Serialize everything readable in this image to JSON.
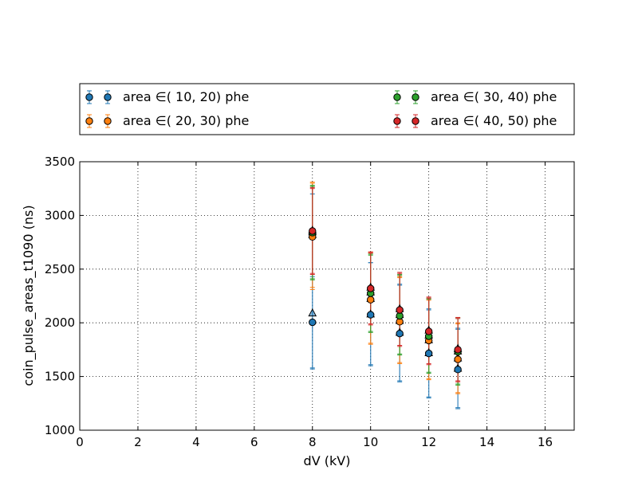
{
  "chart_data": {
    "type": "scatter",
    "title": "",
    "xlabel": "dV (kV)",
    "ylabel": "coin_pulse_areas_t1090 (ns)",
    "xlim": [
      0,
      17
    ],
    "ylim": [
      1000,
      3500
    ],
    "xticks": [
      0,
      2,
      4,
      6,
      8,
      10,
      12,
      14,
      16
    ],
    "yticks": [
      1000,
      1500,
      2000,
      2500,
      3000,
      3500
    ],
    "grid": true,
    "legend_position": "top, above plot, 2 columns",
    "series": [
      {
        "name": "area ∈( 10,  20) phe",
        "color": "#1f77b4",
        "x": [
          8,
          10,
          11,
          12,
          13
        ],
        "circles": [
          2005,
          2075,
          1900,
          1715,
          1565
        ],
        "triangles": [
          2090,
          2080,
          1910,
          1720,
          1575
        ],
        "circle_err": [
          [
            1580,
            2430
          ],
          [
            1600,
            2560
          ],
          [
            1460,
            2350
          ],
          [
            1310,
            2120
          ],
          [
            1210,
            1940
          ]
        ],
        "triangle_err": [
          [
            1570,
            3200
          ],
          [
            1610,
            2560
          ],
          [
            1450,
            2360
          ],
          [
            1300,
            2130
          ],
          [
            1200,
            1950
          ]
        ]
      },
      {
        "name": "area ∈( 20,  30) phe",
        "color": "#ff7f0e",
        "x": [
          8,
          10,
          11,
          12,
          13
        ],
        "circles": [
          2800,
          2215,
          2010,
          1835,
          1660
        ],
        "triangles": [
          2820,
          2225,
          2020,
          1840,
          1670
        ],
        "circle_err": [
          [
            2310,
            3310
          ],
          [
            1800,
            2650
          ],
          [
            1620,
            2420
          ],
          [
            1470,
            2210
          ],
          [
            1340,
            1990
          ]
        ],
        "triangle_err": [
          [
            2330,
            3300
          ],
          [
            1810,
            2660
          ],
          [
            1630,
            2430
          ],
          [
            1480,
            2220
          ],
          [
            1350,
            2000
          ]
        ]
      },
      {
        "name": "area ∈( 30,  40) phe",
        "color": "#2ca02c",
        "x": [
          8,
          10,
          11,
          12,
          13
        ],
        "circles": [
          2840,
          2275,
          2065,
          1875,
          1730
        ],
        "triangles": [
          2845,
          2285,
          2075,
          1885,
          1735
        ],
        "circle_err": [
          [
            2400,
            3280
          ],
          [
            1910,
            2630
          ],
          [
            1700,
            2440
          ],
          [
            1530,
            2220
          ],
          [
            1420,
            2050
          ]
        ],
        "triangle_err": [
          [
            2410,
            3270
          ],
          [
            1920,
            2640
          ],
          [
            1710,
            2450
          ],
          [
            1540,
            2230
          ],
          [
            1430,
            2040
          ]
        ]
      },
      {
        "name": "area ∈( 40,  50) phe",
        "color": "#d62728",
        "x": [
          8,
          10,
          11,
          12,
          13
        ],
        "circles": [
          2855,
          2320,
          2120,
          1920,
          1750
        ],
        "triangles": [
          2860,
          2330,
          2130,
          1930,
          1760
        ],
        "circle_err": [
          [
            2450,
            3260
          ],
          [
            1980,
            2660
          ],
          [
            1780,
            2460
          ],
          [
            1610,
            2230
          ],
          [
            1450,
            2050
          ]
        ],
        "triangle_err": [
          [
            2460,
            3250
          ],
          [
            1990,
            2650
          ],
          [
            1790,
            2470
          ],
          [
            1620,
            2240
          ],
          [
            1460,
            2040
          ]
        ]
      }
    ]
  }
}
